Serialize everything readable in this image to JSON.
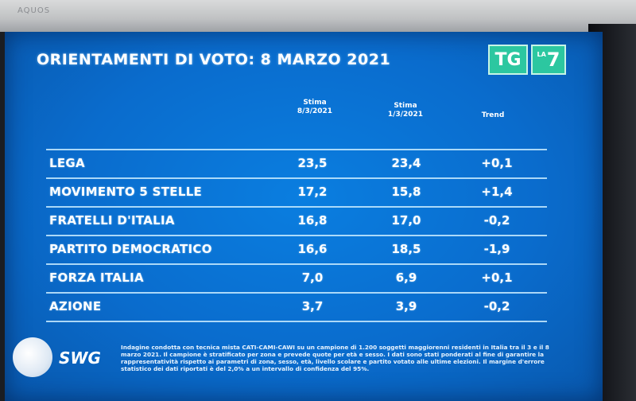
{
  "tv": {
    "brand": "AQUOS"
  },
  "header": {
    "title": "ORIENTAMENTI DI VOTO:",
    "date": "8 MARZO 2021",
    "logo_tg": "TG",
    "logo_la": "LA",
    "logo_seven": "7"
  },
  "columns": {
    "col1_line1": "Stima",
    "col1_line2": "8/3/2021",
    "col2_line1": "Stima",
    "col2_line2": "1/3/2021",
    "col3": "Trend"
  },
  "rows": [
    {
      "party": "LEGA",
      "current": "23,5",
      "previous": "23,4",
      "trend": "+0,1"
    },
    {
      "party": "MOVIMENTO 5 STELLE",
      "current": "17,2",
      "previous": "15,8",
      "trend": "+1,4"
    },
    {
      "party": "FRATELLI D'ITALIA",
      "current": "16,8",
      "previous": "17,0",
      "trend": "-0,2"
    },
    {
      "party": "PARTITO DEMOCRATICO",
      "current": "16,6",
      "previous": "18,5",
      "trend": "-1,9"
    },
    {
      "party": "FORZA ITALIA",
      "current": "7,0",
      "previous": "6,9",
      "trend": "+0,1"
    },
    {
      "party": "AZIONE",
      "current": "3,7",
      "previous": "3,9",
      "trend": "-0,2"
    }
  ],
  "footer": {
    "source": "SWG",
    "note": "Indagine condotta con tecnica mista CATI-CAMI-CAWI su un campione di 1.200 soggetti maggiorenni residenti in Italia tra il 3 e il 8 marzo 2021. Il campione è stratificato per zona e prevede quote per età e sesso. I dati sono stati ponderati al fine di garantire la rappresentatività rispetto ai parametri di zona, sesso, età, livello scolare e partito votato alle ultime elezioni. Il margine d'errore statistico dei dati riportati è del 2,0% a un intervallo di confidenza del 95%."
  }
}
